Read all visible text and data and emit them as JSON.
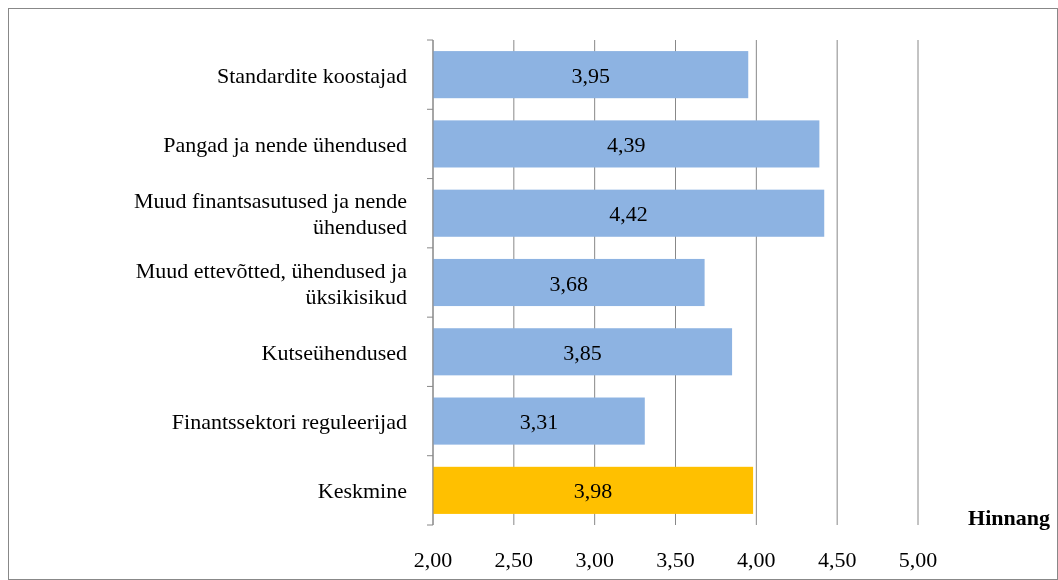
{
  "chart_data": {
    "type": "bar",
    "orientation": "horizontal",
    "xlabel": "Hinnang",
    "categories": [
      "Standardite koostajad",
      "Pangad ja nende ühendused",
      "Muud finantsasutused ja nende ühendused",
      "Muud ettevõtted, ühendused ja üksikisikud",
      "Kutseühendused",
      "Finantssektori reguleerijad",
      "Keskmine"
    ],
    "values": [
      3.95,
      4.39,
      4.42,
      3.68,
      3.85,
      3.31,
      3.98
    ],
    "value_labels": [
      "3,95",
      "4,39",
      "4,42",
      "3,68",
      "3,85",
      "3,31",
      "3,98"
    ],
    "colors": [
      "#8db3e2",
      "#8db3e2",
      "#8db3e2",
      "#8db3e2",
      "#8db3e2",
      "#8db3e2",
      "#ffc000"
    ],
    "xlim": [
      2,
      5
    ],
    "xticks": [
      {
        "value": 2,
        "label": "2,00"
      },
      {
        "value": 2.5,
        "label": "2,50"
      },
      {
        "value": 3,
        "label": "3,00"
      },
      {
        "value": 3.5,
        "label": "3,50"
      },
      {
        "value": 4,
        "label": "4,00"
      },
      {
        "value": 4.5,
        "label": "4,50"
      },
      {
        "value": 5,
        "label": "5,00"
      }
    ],
    "grid": "x"
  }
}
